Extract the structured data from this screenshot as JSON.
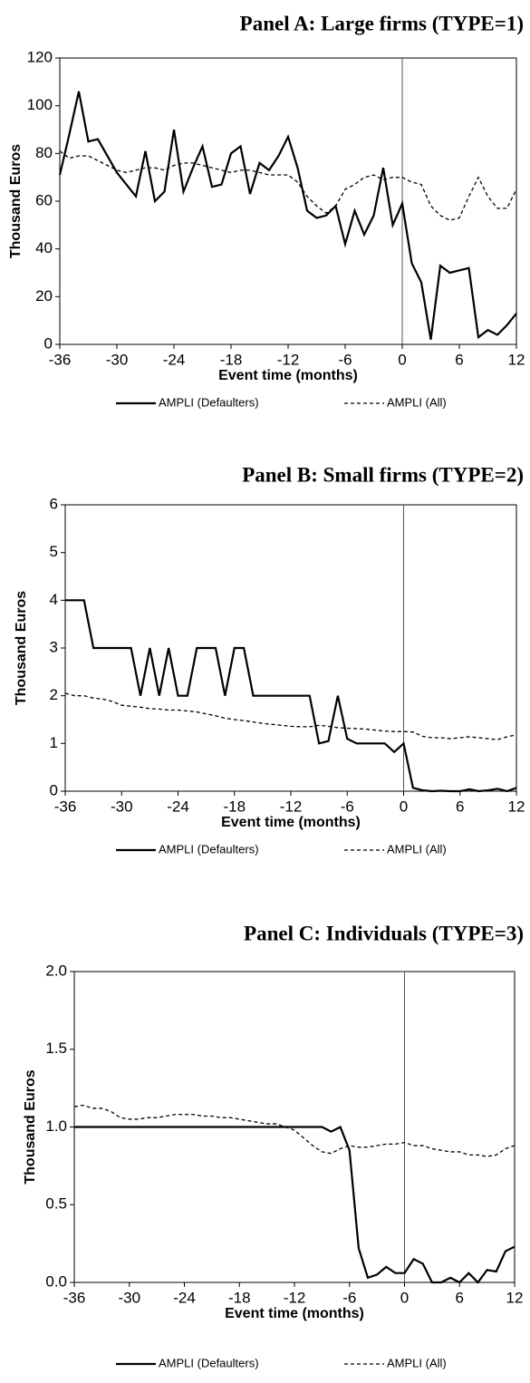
{
  "chart_data": [
    {
      "type": "line",
      "title": "Panel A: Large firms (TYPE=1)",
      "xlabel": "Event time (months)",
      "ylabel": "Thousand Euros",
      "x": [
        -36,
        -35,
        -34,
        -33,
        -32,
        -31,
        -30,
        -29,
        -28,
        -27,
        -26,
        -25,
        -24,
        -23,
        -22,
        -21,
        -20,
        -19,
        -18,
        -17,
        -16,
        -15,
        -14,
        -13,
        -12,
        -11,
        -10,
        -9,
        -8,
        -7,
        -6,
        -5,
        -4,
        -3,
        -2,
        -1,
        0,
        1,
        2,
        3,
        4,
        5,
        6,
        7,
        8,
        9,
        10,
        11,
        12
      ],
      "xlim": [
        -36,
        12
      ],
      "xticks": [
        -36,
        -30,
        -24,
        -18,
        -12,
        -6,
        0,
        6,
        12
      ],
      "ylim": [
        0,
        120
      ],
      "yticks": [
        0,
        20,
        40,
        60,
        80,
        100,
        120
      ],
      "vline": 0,
      "series": [
        {
          "name": "AMPLI (Defaulters)",
          "color": "#000000",
          "linestyle": "solid",
          "values": [
            71,
            88,
            106,
            85,
            86,
            79,
            72,
            67,
            62,
            81,
            60,
            64,
            90,
            64,
            74,
            83,
            66,
            67,
            80,
            83,
            63,
            76,
            73,
            79,
            87,
            74,
            56,
            53,
            54,
            58,
            42,
            56,
            46,
            54,
            74,
            50,
            59,
            34,
            26,
            2,
            33,
            30,
            31,
            32,
            3,
            6,
            4,
            8,
            13
          ]
        },
        {
          "name": "AMPLI (All)",
          "color": "#000000",
          "linestyle": "dashed",
          "values": [
            81,
            78,
            79,
            79,
            77,
            75,
            73,
            72,
            73,
            74,
            74,
            73,
            75,
            76,
            76,
            75,
            74,
            73,
            72,
            73,
            73,
            72,
            71,
            71,
            71,
            68,
            62,
            58,
            55,
            58,
            65,
            67,
            70,
            71,
            69,
            70,
            70,
            68,
            67,
            58,
            54,
            52,
            53,
            62,
            70,
            62,
            57,
            57,
            65
          ]
        }
      ]
    },
    {
      "type": "line",
      "title": "Panel B: Small firms (TYPE=2)",
      "xlabel": "Event time (months)",
      "ylabel": "Thousand Euros",
      "x": [
        -36,
        -35,
        -34,
        -33,
        -32,
        -31,
        -30,
        -29,
        -28,
        -27,
        -26,
        -25,
        -24,
        -23,
        -22,
        -21,
        -20,
        -19,
        -18,
        -17,
        -16,
        -15,
        -14,
        -13,
        -12,
        -11,
        -10,
        -9,
        -8,
        -7,
        -6,
        -5,
        -4,
        -3,
        -2,
        -1,
        0,
        1,
        2,
        3,
        4,
        5,
        6,
        7,
        8,
        9,
        10,
        11,
        12
      ],
      "xlim": [
        -36,
        12
      ],
      "xticks": [
        -36,
        -30,
        -24,
        -18,
        -12,
        -6,
        0,
        6,
        12
      ],
      "ylim": [
        0,
        6
      ],
      "yticks": [
        0,
        1,
        2,
        3,
        4,
        5,
        6
      ],
      "vline": 0,
      "series": [
        {
          "name": "AMPLI (Defaulters)",
          "color": "#000000",
          "linestyle": "solid",
          "values": [
            4,
            4,
            4,
            3,
            3,
            3,
            3,
            3,
            2,
            3,
            2,
            3,
            2,
            2,
            3,
            3,
            3,
            2,
            3,
            3,
            2,
            2,
            2,
            2,
            2,
            2,
            2,
            1,
            1.05,
            2,
            1.1,
            1,
            1,
            1,
            1,
            0.82,
            1,
            0.07,
            0.02,
            0,
            0.01,
            0,
            0,
            0.04,
            0,
            0.02,
            0.05,
            0,
            0.07
          ]
        },
        {
          "name": "AMPLI (All)",
          "color": "#000000",
          "linestyle": "dashed",
          "values": [
            2.05,
            2,
            2,
            1.95,
            1.93,
            1.88,
            1.8,
            1.78,
            1.76,
            1.73,
            1.72,
            1.7,
            1.7,
            1.68,
            1.66,
            1.62,
            1.58,
            1.53,
            1.5,
            1.48,
            1.45,
            1.42,
            1.4,
            1.38,
            1.36,
            1.35,
            1.35,
            1.38,
            1.36,
            1.33,
            1.32,
            1.31,
            1.3,
            1.28,
            1.26,
            1.25,
            1.25,
            1.24,
            1.15,
            1.12,
            1.12,
            1.1,
            1.12,
            1.14,
            1.12,
            1.1,
            1.08,
            1.14,
            1.18
          ]
        }
      ]
    },
    {
      "type": "line",
      "title": "Panel C: Individuals (TYPE=3)",
      "xlabel": "Event time (months)",
      "ylabel": "Thousand Euros",
      "x": [
        -36,
        -35,
        -34,
        -33,
        -32,
        -31,
        -30,
        -29,
        -28,
        -27,
        -26,
        -25,
        -24,
        -23,
        -22,
        -21,
        -20,
        -19,
        -18,
        -17,
        -16,
        -15,
        -14,
        -13,
        -12,
        -11,
        -10,
        -9,
        -8,
        -7,
        -6,
        -5,
        -4,
        -3,
        -2,
        -1,
        0,
        1,
        2,
        3,
        4,
        5,
        6,
        7,
        8,
        9,
        10,
        11,
        12
      ],
      "xlim": [
        -36,
        12
      ],
      "xticks": [
        -36,
        -30,
        -24,
        -18,
        -12,
        -6,
        0,
        6,
        12
      ],
      "ylim": [
        0,
        2
      ],
      "yticks": [
        {
          "value": 0,
          "label": "0.0"
        },
        {
          "value": 0.5,
          "label": "0.5"
        },
        {
          "value": 1,
          "label": "1.0"
        },
        {
          "value": 1.5,
          "label": "1.5"
        },
        {
          "value": 2,
          "label": "2.0"
        }
      ],
      "vline": 0,
      "series": [
        {
          "name": "AMPLI (Defaulters)",
          "color": "#000000",
          "linestyle": "solid",
          "values": [
            1,
            1,
            1,
            1,
            1,
            1,
            1,
            1,
            1,
            1,
            1,
            1,
            1,
            1,
            1,
            1,
            1,
            1,
            1,
            1,
            1,
            1,
            1,
            1,
            1,
            1,
            1,
            1,
            0.97,
            1,
            0.85,
            0.22,
            0.03,
            0.05,
            0.1,
            0.06,
            0.06,
            0.15,
            0.12,
            0,
            0,
            0.03,
            0,
            0.06,
            0,
            0.08,
            0.07,
            0.2,
            0.23
          ]
        },
        {
          "name": "AMPLI (All)",
          "color": "#000000",
          "linestyle": "dashed",
          "values": [
            1.13,
            1.14,
            1.12,
            1.12,
            1.1,
            1.06,
            1.05,
            1.05,
            1.06,
            1.06,
            1.07,
            1.08,
            1.08,
            1.08,
            1.07,
            1.07,
            1.06,
            1.06,
            1.05,
            1.04,
            1.03,
            1.02,
            1.02,
            1,
            0.98,
            0.93,
            0.88,
            0.84,
            0.83,
            0.86,
            0.88,
            0.87,
            0.87,
            0.88,
            0.89,
            0.89,
            0.9,
            0.88,
            0.88,
            0.86,
            0.85,
            0.84,
            0.84,
            0.82,
            0.82,
            0.81,
            0.82,
            0.86,
            0.88
          ]
        }
      ]
    }
  ]
}
